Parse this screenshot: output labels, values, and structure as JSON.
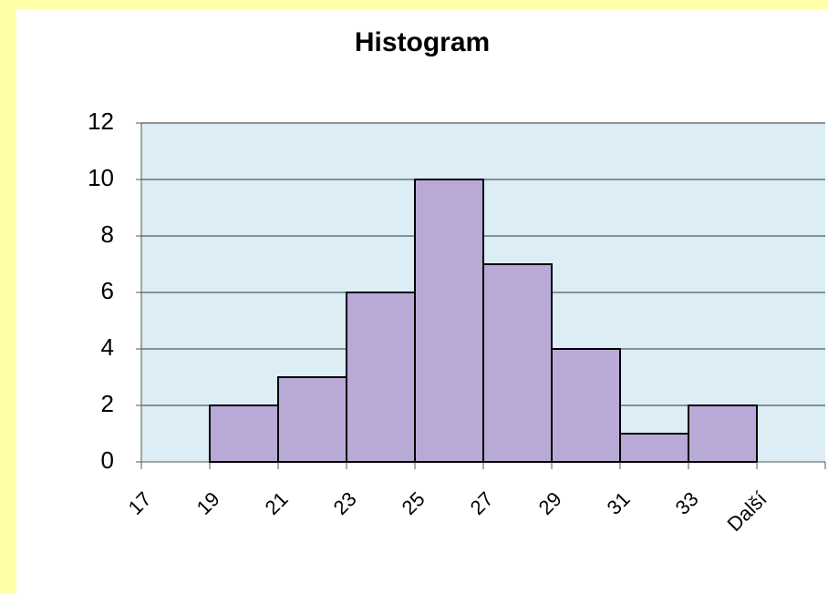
{
  "chart_data": {
    "type": "bar",
    "title": "Histogram",
    "categories": [
      "17",
      "19",
      "21",
      "23",
      "25",
      "27",
      "29",
      "31",
      "33",
      "Další"
    ],
    "values": [
      0,
      2,
      3,
      6,
      10,
      7,
      4,
      1,
      2,
      0
    ],
    "color": "#b9a9d6",
    "ylim": [
      0,
      12
    ],
    "yticks": [
      0,
      2,
      4,
      6,
      8,
      10,
      12
    ],
    "grid": true
  }
}
